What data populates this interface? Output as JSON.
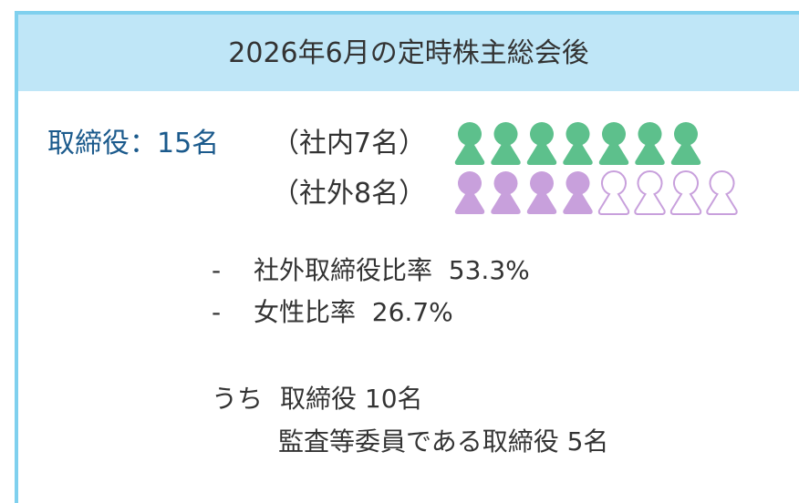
{
  "header": {
    "title": "2026年6月の定時株主総会後"
  },
  "directors": {
    "label": "取締役：15名",
    "inside": "（社内7名）",
    "outside": "（社外8名）"
  },
  "bullets": [
    {
      "marker": "-",
      "text": "社外取締役比率  53.3%"
    },
    {
      "marker": "-",
      "text": "女性比率  26.7%"
    }
  ],
  "breakdown": {
    "lead": "うち",
    "lines": [
      "取締役 10名",
      "監査等委員である取締役 5名"
    ]
  }
}
